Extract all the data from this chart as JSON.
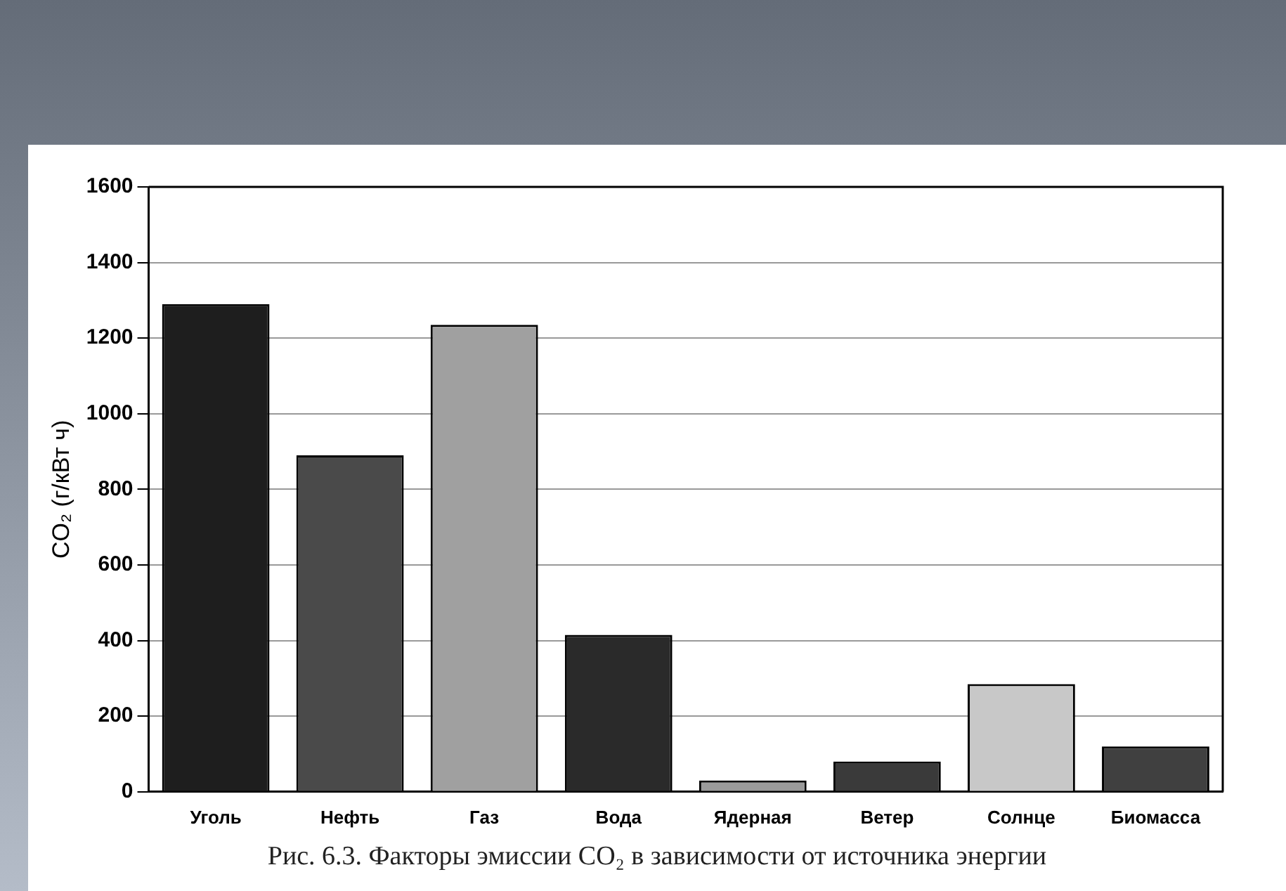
{
  "chart_data": {
    "type": "bar",
    "ylabel": "CO₂ (г/кВт ч)",
    "categories": [
      "Уголь",
      "Нефть",
      "Газ",
      "Вода",
      "Ядерная",
      "Ветер",
      "Солнце",
      "Биомасса"
    ],
    "values": [
      1290,
      890,
      1235,
      415,
      30,
      80,
      285,
      120
    ],
    "colors": [
      "#1e1e1e",
      "#4a4a4a",
      "#a0a0a0",
      "#2a2a2a",
      "#9a9a9a",
      "#3a3a3a",
      "#c8c8c8",
      "#404040"
    ],
    "ylim": [
      0,
      1600
    ],
    "yticks": [
      0,
      200,
      400,
      600,
      800,
      1000,
      1200,
      1400,
      1600
    ],
    "grid": "y",
    "annotations": [
      "Рис. 6.3. Факторы эмиссии CO₂ в зависимости от источника энергии"
    ]
  }
}
